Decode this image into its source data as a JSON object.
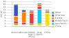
{
  "chart_data": {
    "type": "bar",
    "stacked": true,
    "categories": [
      "Americas",
      "Europe",
      "Middle\nEast &\nAfrica",
      "Asia\nPacific",
      "China"
    ],
    "series": [
      {
        "name": "China",
        "color": "#FFDD00",
        "values": [
          1.0,
          0.8,
          1.0,
          2.0,
          9.5
        ]
      },
      {
        "name": "Asia Pacific (excl. China)",
        "color": "#00CFFF",
        "values": [
          0.8,
          0.6,
          0.8,
          10.5,
          0.5
        ]
      },
      {
        "name": "Middle East & Africa",
        "color": "#FF3333",
        "values": [
          2.0,
          1.5,
          7.5,
          2.0,
          0.8
        ]
      },
      {
        "name": "Europe",
        "color": "#FF8000",
        "values": [
          3.5,
          7.5,
          1.5,
          1.5,
          0.8
        ]
      },
      {
        "name": "Americas",
        "color": "#3355CC",
        "values": [
          8.5,
          1.5,
          0.8,
          0.8,
          0.5
        ]
      },
      {
        "name": "Other",
        "color": "#44BB44",
        "values": [
          0.6,
          0.5,
          0.4,
          0.4,
          0.3
        ]
      }
    ],
    "ylabel": "GtCO2",
    "ylim": [
      0,
      18
    ],
    "yticks": [
      0,
      2,
      4,
      6,
      8,
      10,
      12,
      14,
      16,
      18
    ],
    "grid": true,
    "legend": "right"
  }
}
